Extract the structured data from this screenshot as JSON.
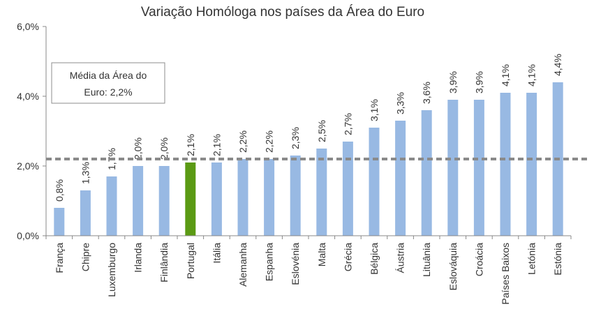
{
  "chart_data": {
    "type": "bar",
    "title": "Variação Homóloga nos países da Área do Euro",
    "xlabel": "",
    "ylabel": "",
    "categories": [
      "França",
      "Chipre",
      "Luxemburgo",
      "Irlanda",
      "Finlândia",
      "Portugal",
      "Itália",
      "Alemanha",
      "Espanha",
      "Eslovénia",
      "Malta",
      "Grécia",
      "Bélgica",
      "Áustria",
      "Lituânia",
      "Eslováquia",
      "Croácia",
      "Países Baixos",
      "Letónia",
      "Estónia"
    ],
    "values": [
      0.8,
      1.3,
      1.7,
      2.0,
      2.0,
      2.1,
      2.1,
      2.2,
      2.2,
      2.3,
      2.5,
      2.7,
      3.1,
      3.3,
      3.6,
      3.9,
      3.9,
      4.1,
      4.1,
      4.4
    ],
    "data_labels": [
      "0,8%",
      "1,3%",
      "1,7%",
      "2,0%",
      "2,0%",
      "2,1%",
      "2,1%",
      "2,2%",
      "2,2%",
      "2,3%",
      "2,5%",
      "2,7%",
      "3,1%",
      "3,3%",
      "3,6%",
      "3,9%",
      "3,9%",
      "4,1%",
      "4,1%",
      "4,4%"
    ],
    "ylim": [
      0,
      6
    ],
    "yticks": [
      0,
      2,
      4,
      6
    ],
    "ytick_labels": [
      "0,0%",
      "2,0%",
      "4,0%",
      "6,0%"
    ],
    "grid": false,
    "reference_line": {
      "value": 2.2,
      "style": "dashed"
    },
    "annotation": {
      "lines": [
        "Média da Área do",
        "Euro: 2,2%"
      ]
    },
    "highlight": {
      "category": "Portugal",
      "color": "#5b9a14"
    },
    "colors": {
      "bar": "#98b9e3",
      "highlight": "#5b9a14",
      "reference_line": "#8a8a8a",
      "axis": "#888888"
    }
  }
}
